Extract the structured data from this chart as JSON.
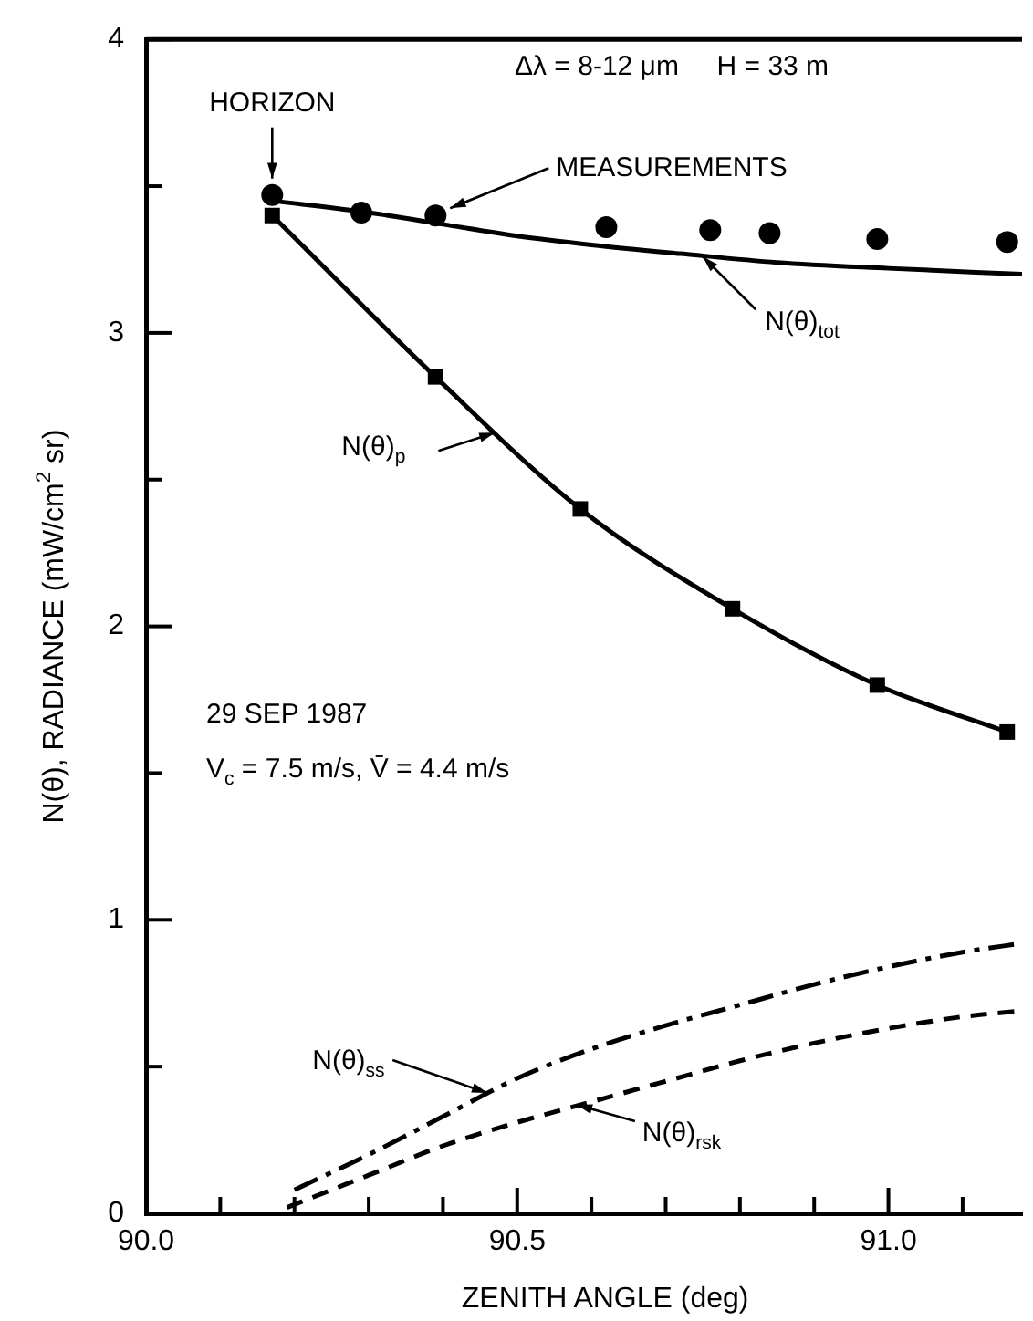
{
  "chart_data": {
    "type": "line",
    "xlabel": "ZENITH ANGLE (deg)",
    "ylabel": "N(θ), RADIANCE (mW/cm$^{2}$ sr)",
    "xlim": [
      90.0,
      91.18
    ],
    "xticks": [
      {
        "value": 90.0,
        "label": "90.0"
      },
      {
        "value": 90.1,
        "label": null
      },
      {
        "value": 90.2,
        "label": null
      },
      {
        "value": 90.3,
        "label": null
      },
      {
        "value": 90.4,
        "label": null
      },
      {
        "value": 90.5,
        "label": "90.5"
      },
      {
        "value": 90.6,
        "label": null
      },
      {
        "value": 90.7,
        "label": null
      },
      {
        "value": 90.8,
        "label": null
      },
      {
        "value": 90.9,
        "label": null
      },
      {
        "value": 91.0,
        "label": "91.0"
      },
      {
        "value": 91.1,
        "label": null
      }
    ],
    "ylim": [
      0,
      4
    ],
    "yticks": [
      0,
      {
        "value": 0.5,
        "label": null
      },
      1,
      {
        "value": 1.5,
        "label": null
      },
      2,
      {
        "value": 2.5,
        "label": null
      },
      3,
      {
        "value": 3.5,
        "label": null
      },
      4
    ],
    "grid": false,
    "legend": false,
    "series": [
      {
        "type": "scatter",
        "marker": "circle",
        "color": "#000000",
        "x": [
          90.17,
          90.29,
          90.39,
          90.62,
          90.76,
          90.84,
          90.985,
          91.16
        ],
        "values": [
          3.47,
          3.41,
          3.4,
          3.36,
          3.35,
          3.34,
          3.32,
          3.31
        ]
      },
      {
        "type": "line",
        "marker": "none",
        "line_style": "solid",
        "color": "#000000",
        "x": [
          90.17,
          90.3,
          90.4,
          90.5,
          90.6,
          90.72,
          90.85,
          91.0,
          91.18
        ],
        "values": [
          3.45,
          3.41,
          3.37,
          3.33,
          3.3,
          3.27,
          3.24,
          3.22,
          3.2
        ]
      },
      {
        "type": "line",
        "marker": "square",
        "line_style": "solid",
        "color": "#000000",
        "x": [
          90.17,
          90.39,
          90.585,
          90.79,
          90.985,
          91.16
        ],
        "values": [
          3.4,
          2.85,
          2.4,
          2.06,
          1.8,
          1.64
        ]
      },
      {
        "type": "line",
        "marker": "none",
        "line_style": "dashdot",
        "color": "#000000",
        "x": [
          90.2,
          90.3,
          90.4,
          90.5,
          90.6,
          90.7,
          90.8,
          90.9,
          91.0,
          91.1,
          91.18
        ],
        "values": [
          0.08,
          0.2,
          0.33,
          0.46,
          0.56,
          0.64,
          0.71,
          0.78,
          0.84,
          0.89,
          0.92
        ]
      },
      {
        "type": "line",
        "marker": "none",
        "line_style": "dashed",
        "color": "#000000",
        "x": [
          90.19,
          90.3,
          90.4,
          90.5,
          90.6,
          90.7,
          90.8,
          90.9,
          91.0,
          91.1,
          91.18
        ],
        "values": [
          0.02,
          0.13,
          0.23,
          0.31,
          0.38,
          0.45,
          0.52,
          0.58,
          0.63,
          0.67,
          0.69
        ]
      }
    ],
    "annotations": [
      "Δλ = 8-12 μm     H = 33 m",
      "29 SEP 1987",
      "V$_{c}$ = 7.5 m/s, V̄ = 4.4 m/s",
      {
        "text": "HORIZON",
        "x": 90.17,
        "y": 3.47
      },
      {
        "text": "MEASUREMENTS",
        "x": 90.39,
        "y": 3.4
      },
      {
        "text": "N(θ)$_{tot}$",
        "x": 90.75,
        "y": 3.26
      },
      {
        "text": "N(θ)$_{p}$",
        "x": 90.47,
        "y": 2.66
      },
      {
        "text": "N(θ)$_{ss}$",
        "x": 90.46,
        "y": 0.41
      },
      {
        "text": "N(θ)$_{rsk}$",
        "x": 90.58,
        "y": 0.37
      }
    ]
  }
}
